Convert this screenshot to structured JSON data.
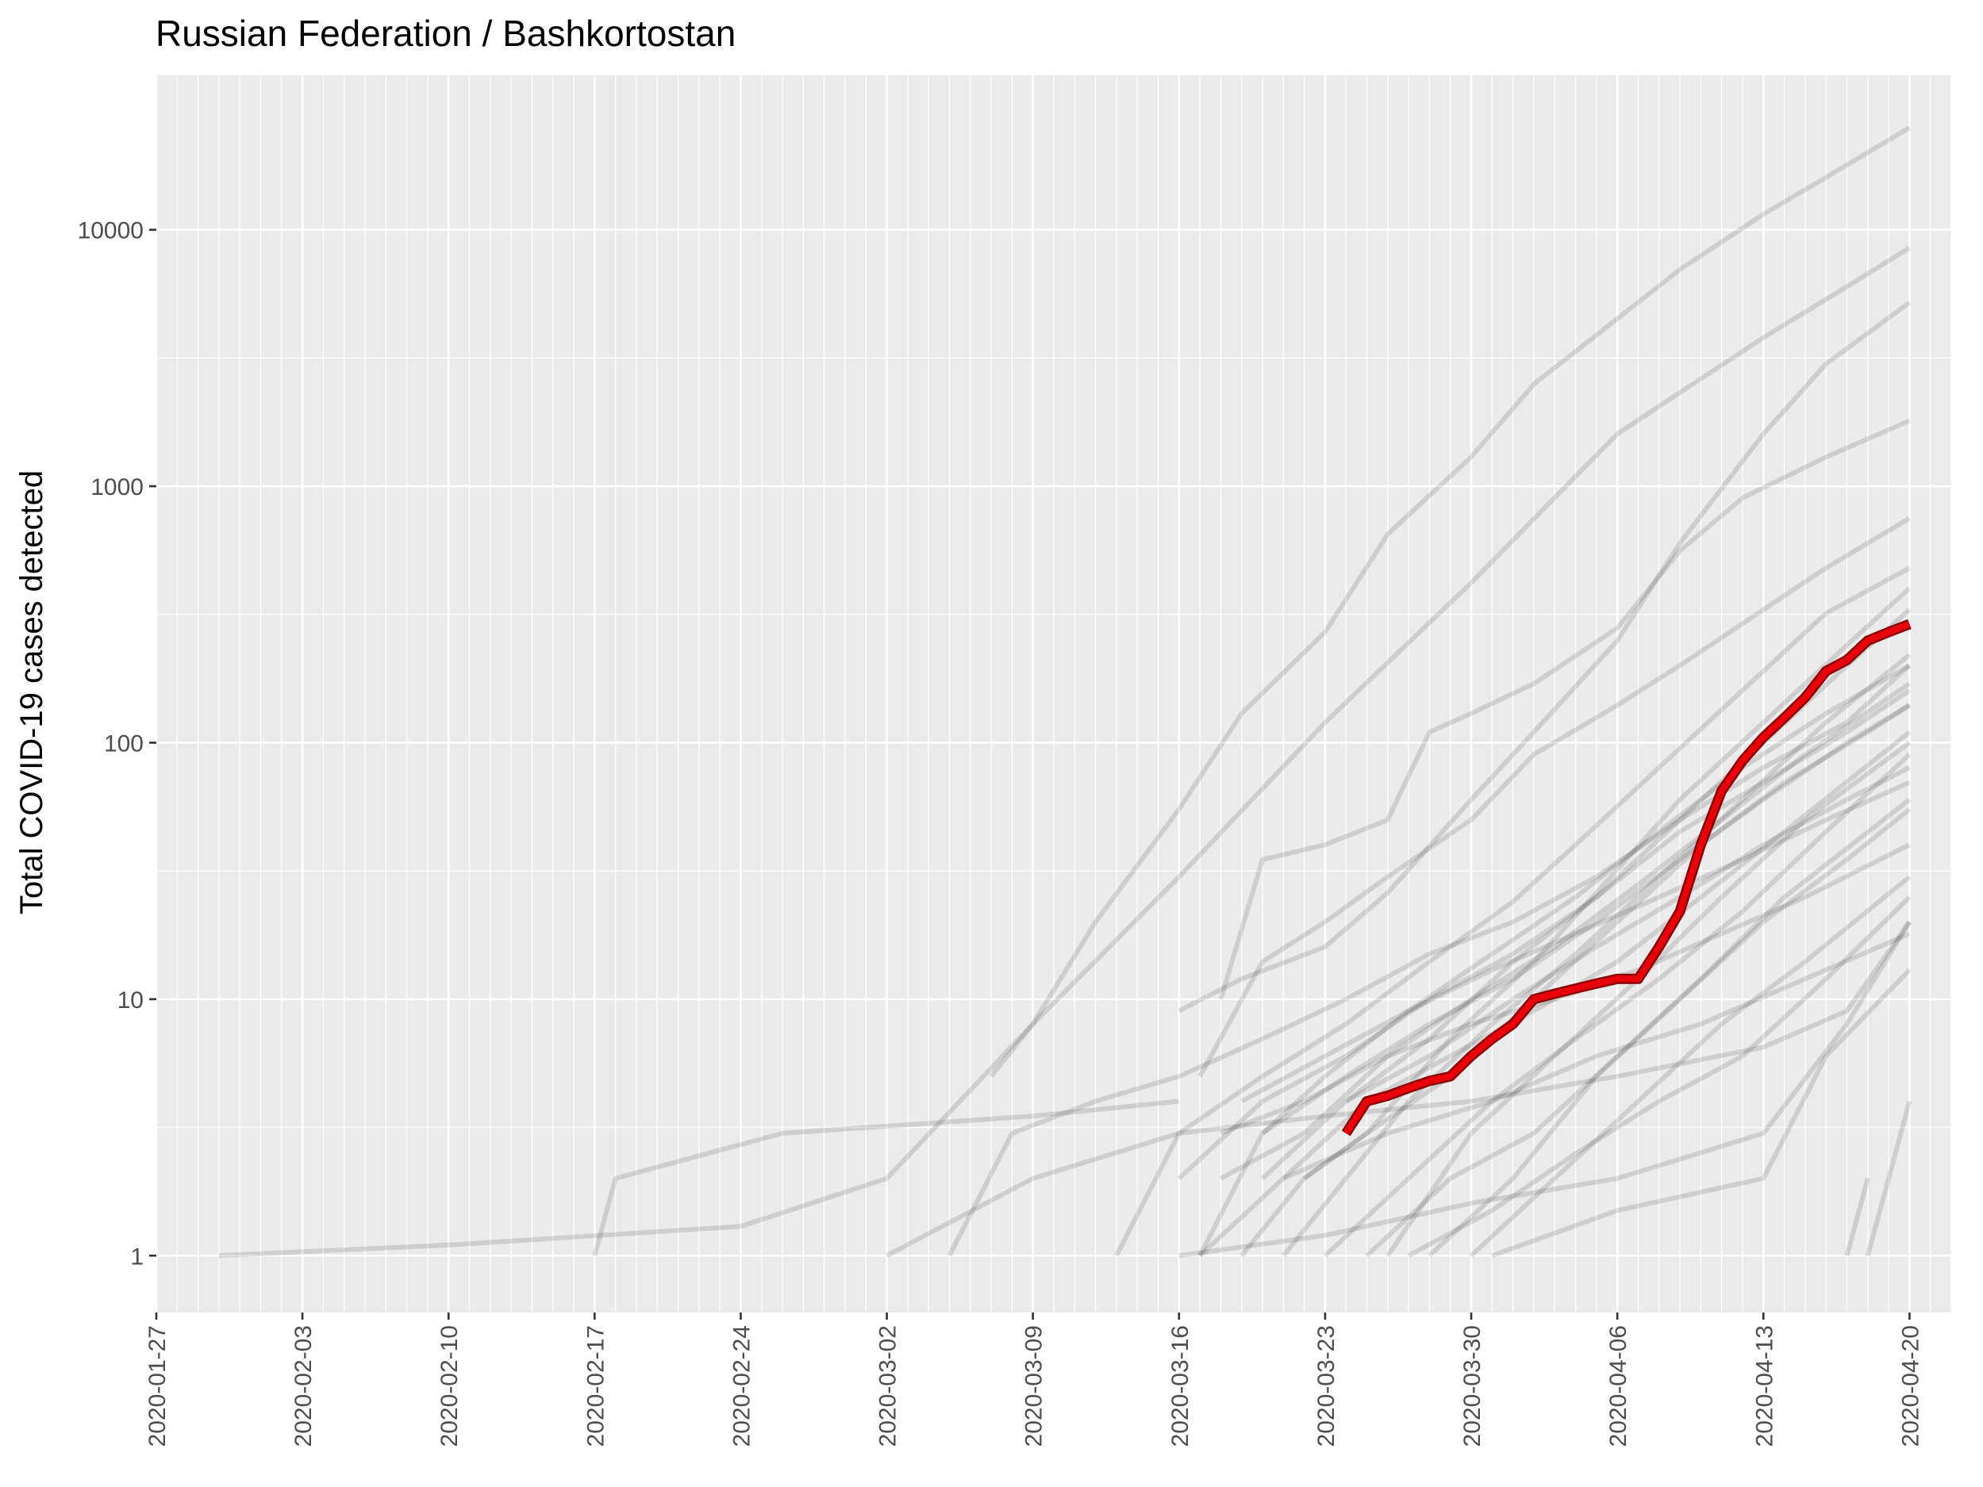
{
  "chart_data": {
    "type": "line",
    "title": "Russian Federation / Bashkortostan",
    "xlabel": "",
    "ylabel": "Total COVID-19 cases detected",
    "y_scale": "log10",
    "x_range": [
      "2020-01-27",
      "2020-04-22"
    ],
    "ylim": [
      0.6,
      40000
    ],
    "x_ticks": [
      "2020-01-27",
      "2020-02-03",
      "2020-02-10",
      "2020-02-17",
      "2020-02-24",
      "2020-03-02",
      "2020-03-09",
      "2020-03-16",
      "2020-03-23",
      "2020-03-30",
      "2020-04-06",
      "2020-04-13",
      "2020-04-20"
    ],
    "y_ticks": [
      1,
      10,
      100,
      1000,
      10000
    ],
    "y_tick_labels": [
      "1",
      "10",
      "100",
      "1000",
      "10000"
    ],
    "grid": true,
    "legend": "none",
    "colors": {
      "panel": "#ebebeb",
      "grid": "#ffffff",
      "background_series": "#000000",
      "highlight": "#e8000b",
      "highlight_edge": "#8b0000"
    },
    "highlight_series": {
      "x": [
        "2020-03-24",
        "2020-03-25",
        "2020-03-26",
        "2020-03-27",
        "2020-03-28",
        "2020-03-29",
        "2020-03-30",
        "2020-03-31",
        "2020-04-01",
        "2020-04-02",
        "2020-04-03",
        "2020-04-04",
        "2020-04-05",
        "2020-04-06",
        "2020-04-07",
        "2020-04-08",
        "2020-04-09",
        "2020-04-10",
        "2020-04-11",
        "2020-04-12",
        "2020-04-13",
        "2020-04-14",
        "2020-04-15",
        "2020-04-16",
        "2020-04-17",
        "2020-04-18",
        "2020-04-19",
        "2020-04-20"
      ],
      "y": [
        3,
        4,
        4.2,
        4.5,
        4.8,
        5,
        6,
        7,
        8,
        10,
        10.5,
        11,
        11.5,
        12,
        12,
        16,
        22,
        40,
        65,
        85,
        105,
        125,
        150,
        190,
        210,
        250,
        270,
        290
      ]
    },
    "background_series": [
      {
        "x": [
          "2020-01-30",
          "2020-02-10",
          "2020-02-24",
          "2020-03-02",
          "2020-03-09",
          "2020-03-16",
          "2020-03-23",
          "2020-03-30",
          "2020-04-06",
          "2020-04-13",
          "2020-04-17",
          "2020-04-20"
        ],
        "y": [
          1,
          1.1,
          1.3,
          2,
          8,
          30,
          120,
          420,
          1600,
          3800,
          6000,
          8500
        ]
      },
      {
        "x": [
          "2020-03-07",
          "2020-03-09",
          "2020-03-12",
          "2020-03-16",
          "2020-03-19",
          "2020-03-23",
          "2020-03-26",
          "2020-03-30",
          "2020-04-02",
          "2020-04-06",
          "2020-04-09",
          "2020-04-13",
          "2020-04-16",
          "2020-04-20"
        ],
        "y": [
          5,
          8,
          20,
          55,
          130,
          270,
          650,
          1300,
          2500,
          4500,
          7000,
          11500,
          16000,
          25000
        ]
      },
      {
        "x": [
          "2020-03-16",
          "2020-03-19",
          "2020-03-23",
          "2020-03-26",
          "2020-03-30",
          "2020-04-02",
          "2020-04-06",
          "2020-04-09",
          "2020-04-13",
          "2020-04-16",
          "2020-04-20"
        ],
        "y": [
          9,
          12,
          16,
          26,
          60,
          110,
          250,
          600,
          1600,
          3000,
          5200
        ]
      },
      {
        "x": [
          "2020-03-18",
          "2020-03-20",
          "2020-03-23",
          "2020-03-26",
          "2020-03-28",
          "2020-03-30",
          "2020-04-02",
          "2020-04-06",
          "2020-04-09",
          "2020-04-12",
          "2020-04-16",
          "2020-04-20"
        ],
        "y": [
          10,
          35,
          40,
          50,
          110,
          130,
          170,
          280,
          560,
          900,
          1300,
          1800
        ]
      },
      {
        "x": [
          "2020-03-17",
          "2020-03-20",
          "2020-03-23",
          "2020-03-26",
          "2020-03-30",
          "2020-04-02",
          "2020-04-06",
          "2020-04-09",
          "2020-04-13",
          "2020-04-16",
          "2020-04-20"
        ],
        "y": [
          5,
          14,
          20,
          30,
          50,
          90,
          140,
          200,
          330,
          480,
          750
        ]
      },
      {
        "x": [
          "2020-03-13",
          "2020-03-16",
          "2020-03-20",
          "2020-03-24",
          "2020-03-28",
          "2020-04-01",
          "2020-04-04",
          "2020-04-08",
          "2020-04-12",
          "2020-04-16",
          "2020-04-20"
        ],
        "y": [
          1,
          3,
          5,
          8,
          14,
          24,
          40,
          80,
          160,
          320,
          480
        ]
      },
      {
        "x": [
          "2020-03-19",
          "2020-03-22",
          "2020-03-25",
          "2020-03-29",
          "2020-04-02",
          "2020-04-05",
          "2020-04-09",
          "2020-04-13",
          "2020-04-17",
          "2020-04-20"
        ],
        "y": [
          1,
          2,
          3,
          7,
          14,
          26,
          60,
          120,
          240,
          400
        ]
      },
      {
        "x": [
          "2020-03-16",
          "2020-03-20",
          "2020-03-24",
          "2020-03-28",
          "2020-04-01",
          "2020-04-05",
          "2020-04-09",
          "2020-04-13",
          "2020-04-17",
          "2020-04-20"
        ],
        "y": [
          2,
          4,
          6,
          10,
          15,
          25,
          50,
          100,
          200,
          330
        ]
      },
      {
        "x": [
          "2020-03-21",
          "2020-03-24",
          "2020-03-27",
          "2020-03-31",
          "2020-04-04",
          "2020-04-08",
          "2020-04-12",
          "2020-04-16",
          "2020-04-20"
        ],
        "y": [
          1,
          2,
          4,
          8,
          15,
          30,
          60,
          120,
          220
        ]
      },
      {
        "x": [
          "2020-03-18",
          "2020-03-22",
          "2020-03-26",
          "2020-03-30",
          "2020-04-03",
          "2020-04-07",
          "2020-04-11",
          "2020-04-15",
          "2020-04-20"
        ],
        "y": [
          2,
          3,
          6,
          10,
          16,
          28,
          50,
          90,
          170
        ]
      },
      {
        "x": [
          "2020-03-20",
          "2020-03-24",
          "2020-03-28",
          "2020-04-01",
          "2020-04-05",
          "2020-04-09",
          "2020-04-13",
          "2020-04-17",
          "2020-04-20"
        ],
        "y": [
          3,
          5,
          8,
          12,
          20,
          35,
          60,
          100,
          140
        ]
      },
      {
        "x": [
          "2020-03-17",
          "2020-03-21",
          "2020-03-25",
          "2020-03-29",
          "2020-04-02",
          "2020-04-06",
          "2020-04-10",
          "2020-04-14",
          "2020-04-20"
        ],
        "y": [
          1,
          2,
          4,
          6,
          9,
          14,
          25,
          45,
          110
        ]
      },
      {
        "x": [
          "2020-03-23",
          "2020-03-27",
          "2020-03-31",
          "2020-04-04",
          "2020-04-08",
          "2020-04-12",
          "2020-04-16",
          "2020-04-20"
        ],
        "y": [
          1,
          2,
          4,
          7,
          12,
          22,
          45,
          90
        ]
      },
      {
        "x": [
          "2020-03-19",
          "2020-03-23",
          "2020-03-27",
          "2020-03-31",
          "2020-04-04",
          "2020-04-08",
          "2020-04-12",
          "2020-04-16",
          "2020-04-20"
        ],
        "y": [
          4,
          6,
          9,
          13,
          18,
          25,
          35,
          50,
          70
        ]
      },
      {
        "x": [
          "2020-03-25",
          "2020-03-29",
          "2020-04-02",
          "2020-04-06",
          "2020-04-10",
          "2020-04-14",
          "2020-04-20"
        ],
        "y": [
          1,
          2,
          3,
          6,
          12,
          25,
          60
        ]
      },
      {
        "x": [
          "2020-03-18",
          "2020-03-22",
          "2020-03-26",
          "2020-03-30",
          "2020-04-03",
          "2020-04-07",
          "2020-04-11",
          "2020-04-15",
          "2020-04-20"
        ],
        "y": [
          3,
          4,
          6,
          8,
          10,
          13,
          18,
          25,
          40
        ]
      },
      {
        "x": [
          "2020-03-27",
          "2020-03-31",
          "2020-04-04",
          "2020-04-08",
          "2020-04-12",
          "2020-04-16",
          "2020-04-20"
        ],
        "y": [
          1,
          1.5,
          2.5,
          4,
          6,
          12,
          25
        ]
      },
      {
        "x": [
          "2020-03-30",
          "2020-04-03",
          "2020-04-07",
          "2020-04-11",
          "2020-04-15",
          "2020-04-20"
        ],
        "y": [
          1,
          2,
          4,
          8,
          14,
          30
        ]
      },
      {
        "x": [
          "2020-03-21",
          "2020-03-26",
          "2020-03-31",
          "2020-04-05",
          "2020-04-10",
          "2020-04-15",
          "2020-04-20"
        ],
        "y": [
          2,
          3,
          4,
          6,
          8,
          12,
          18
        ]
      },
      {
        "x": [
          "2020-03-31",
          "2020-04-06",
          "2020-04-13",
          "2020-04-16",
          "2020-04-20"
        ],
        "y": [
          1,
          1.5,
          2,
          6,
          13
        ]
      },
      {
        "x": [
          "2020-02-17",
          "2020-02-18",
          "2020-02-26",
          "2020-03-09",
          "2020-03-16"
        ],
        "y": [
          1,
          2,
          3,
          3.5,
          4
        ]
      },
      {
        "x": [
          "2020-03-02",
          "2020-03-09",
          "2020-03-16",
          "2020-03-23",
          "2020-03-30",
          "2020-04-06",
          "2020-04-13",
          "2020-04-17",
          "2020-04-20"
        ],
        "y": [
          1,
          2,
          3,
          3.5,
          4,
          5,
          6.5,
          9,
          20
        ]
      },
      {
        "x": [
          "2020-03-16",
          "2020-03-23",
          "2020-03-30",
          "2020-04-06",
          "2020-04-13",
          "2020-04-17",
          "2020-04-20"
        ],
        "y": [
          1,
          1.2,
          1.6,
          2,
          3,
          8,
          20
        ]
      },
      {
        "x": [
          "2020-04-17",
          "2020-04-18"
        ],
        "y": [
          1,
          2
        ]
      },
      {
        "x": [
          "2020-04-18",
          "2020-04-19",
          "2020-04-20"
        ],
        "y": [
          1,
          2,
          4
        ]
      },
      {
        "x": [
          "2020-03-05",
          "2020-03-08",
          "2020-03-12",
          "2020-03-16",
          "2020-03-20",
          "2020-03-24",
          "2020-03-28",
          "2020-04-01",
          "2020-04-05",
          "2020-04-09",
          "2020-04-13",
          "2020-04-17",
          "2020-04-20"
        ],
        "y": [
          1,
          3,
          4,
          5,
          7,
          10,
          15,
          20,
          30,
          50,
          80,
          120,
          200
        ]
      },
      {
        "x": [
          "2020-03-17",
          "2020-03-20",
          "2020-03-23",
          "2020-03-27",
          "2020-03-31",
          "2020-04-04",
          "2020-04-08",
          "2020-04-12",
          "2020-04-16",
          "2020-04-20"
        ],
        "y": [
          1,
          3,
          5,
          9,
          15,
          25,
          45,
          80,
          130,
          200
        ]
      },
      {
        "x": [
          "2020-03-22",
          "2020-03-25",
          "2020-03-29",
          "2020-04-02",
          "2020-04-06",
          "2020-04-10",
          "2020-04-14",
          "2020-04-18",
          "2020-04-20"
        ],
        "y": [
          2,
          3,
          5,
          10,
          20,
          40,
          70,
          110,
          140
        ]
      },
      {
        "x": [
          "2020-03-26",
          "2020-03-30",
          "2020-04-03",
          "2020-04-07",
          "2020-04-11",
          "2020-04-15",
          "2020-04-20"
        ],
        "y": [
          1,
          3,
          6,
          12,
          25,
          50,
          100
        ]
      },
      {
        "x": [
          "2020-03-24",
          "2020-03-28",
          "2020-04-01",
          "2020-04-05",
          "2020-04-09",
          "2020-04-13",
          "2020-04-17",
          "2020-04-20"
        ],
        "y": [
          4,
          6,
          10,
          16,
          25,
          40,
          60,
          80
        ]
      },
      {
        "x": [
          "2020-03-20",
          "2020-03-24",
          "2020-03-28",
          "2020-04-01",
          "2020-04-05",
          "2020-04-09",
          "2020-04-13",
          "2020-04-17",
          "2020-04-20"
        ],
        "y": [
          2,
          4,
          7,
          14,
          25,
          45,
          70,
          110,
          160
        ]
      },
      {
        "x": [
          "2020-03-28",
          "2020-04-01",
          "2020-04-05",
          "2020-04-09",
          "2020-04-13",
          "2020-04-17",
          "2020-04-20"
        ],
        "y": [
          1,
          2,
          5,
          10,
          20,
          35,
          55
        ]
      }
    ]
  }
}
